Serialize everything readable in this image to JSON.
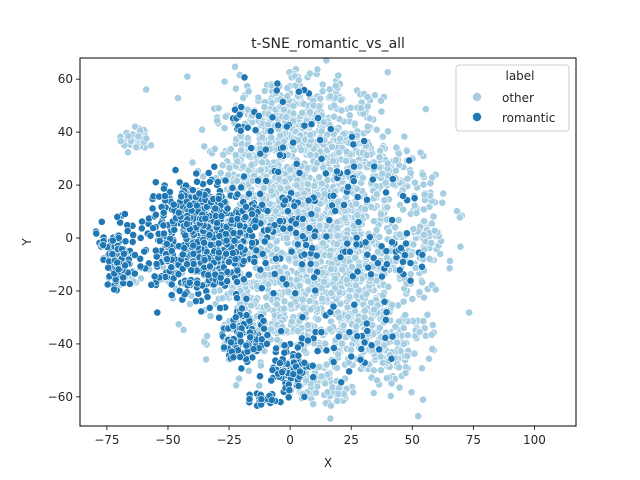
{
  "chart_data": {
    "type": "scatter",
    "title": "t-SNE_romantic_vs_all",
    "xlabel": "X",
    "ylabel": "Y",
    "xlim": [
      -86,
      117
    ],
    "ylim": [
      -71,
      68
    ],
    "xticks": [
      -75,
      -50,
      -25,
      0,
      25,
      50,
      75,
      100
    ],
    "yticks": [
      -60,
      -40,
      -20,
      0,
      20,
      40,
      60
    ],
    "grid": false,
    "legend": {
      "title": "label",
      "placement": "top-right",
      "entries": [
        {
          "label": "other",
          "color": "#a6cee3"
        },
        {
          "label": "romantic",
          "color": "#1f78b4"
        }
      ]
    },
    "series": [
      {
        "name": "other",
        "color": "#a6cee3",
        "clusters": [
          {
            "cx": -63,
            "cy": 37,
            "sx": 3,
            "sy": 3,
            "n": 45
          },
          {
            "cx": 5,
            "cy": 40,
            "sx": 16,
            "sy": 11,
            "n": 520
          },
          {
            "cx": 20,
            "cy": -10,
            "sx": 16,
            "sy": 20,
            "n": 950
          },
          {
            "cx": 0,
            "cy": 15,
            "sx": 13,
            "sy": 11,
            "n": 360
          },
          {
            "cx": 40,
            "cy": 25,
            "sx": 7,
            "sy": 5,
            "n": 90
          },
          {
            "cx": 55,
            "cy": 0,
            "sx": 4,
            "sy": 10,
            "n": 70
          },
          {
            "cx": -10,
            "cy": -25,
            "sx": 15,
            "sy": 12,
            "n": 280
          },
          {
            "cx": 40,
            "cy": -40,
            "sx": 9,
            "sy": 6,
            "n": 130
          },
          {
            "cx": 12,
            "cy": -55,
            "sx": 6,
            "sy": 4,
            "n": 55
          },
          {
            "cx": 20,
            "cy": -59,
            "sx": 2,
            "sy": 2,
            "n": 14
          },
          {
            "cx": -20,
            "cy": 22,
            "sx": 9,
            "sy": 7,
            "n": 110
          },
          {
            "cx": -65,
            "cy": -15,
            "sx": 3,
            "sy": 2,
            "n": 18
          },
          {
            "cx": -48,
            "cy": -12,
            "sx": 4,
            "sy": 3,
            "n": 25
          }
        ]
      },
      {
        "name": "romantic",
        "color": "#1f78b4",
        "clusters": [
          {
            "cx": -35,
            "cy": -4,
            "sx": 11,
            "sy": 9,
            "n": 520
          },
          {
            "cx": -38,
            "cy": 12,
            "sx": 8,
            "sy": 5,
            "n": 140
          },
          {
            "cx": -70,
            "cy": -6,
            "sx": 4,
            "sy": 6,
            "n": 120
          },
          {
            "cx": -20,
            "cy": -37,
            "sx": 5,
            "sy": 5,
            "n": 90
          },
          {
            "cx": 0,
            "cy": -50,
            "sx": 4,
            "sy": 5,
            "n": 75
          },
          {
            "cx": -12,
            "cy": -61,
            "sx": 3,
            "sy": 1.5,
            "n": 22
          },
          {
            "cx": 5,
            "cy": 5,
            "sx": 12,
            "sy": 12,
            "n": 65
          },
          {
            "cx": 0,
            "cy": 42,
            "sx": 12,
            "sy": 10,
            "n": 28
          },
          {
            "cx": -20,
            "cy": 45,
            "sx": 3,
            "sy": 3,
            "n": 10
          },
          {
            "cx": 45,
            "cy": -8,
            "sx": 7,
            "sy": 4,
            "n": 24
          },
          {
            "cx": 30,
            "cy": 25,
            "sx": 8,
            "sy": 6,
            "n": 18
          },
          {
            "cx": 25,
            "cy": -40,
            "sx": 10,
            "sy": 8,
            "n": 30
          },
          {
            "cx": -15,
            "cy": 8,
            "sx": 4,
            "sy": 4,
            "n": 30
          },
          {
            "cx": 25,
            "cy": 5,
            "sx": 15,
            "sy": 15,
            "n": 30
          }
        ]
      }
    ]
  }
}
